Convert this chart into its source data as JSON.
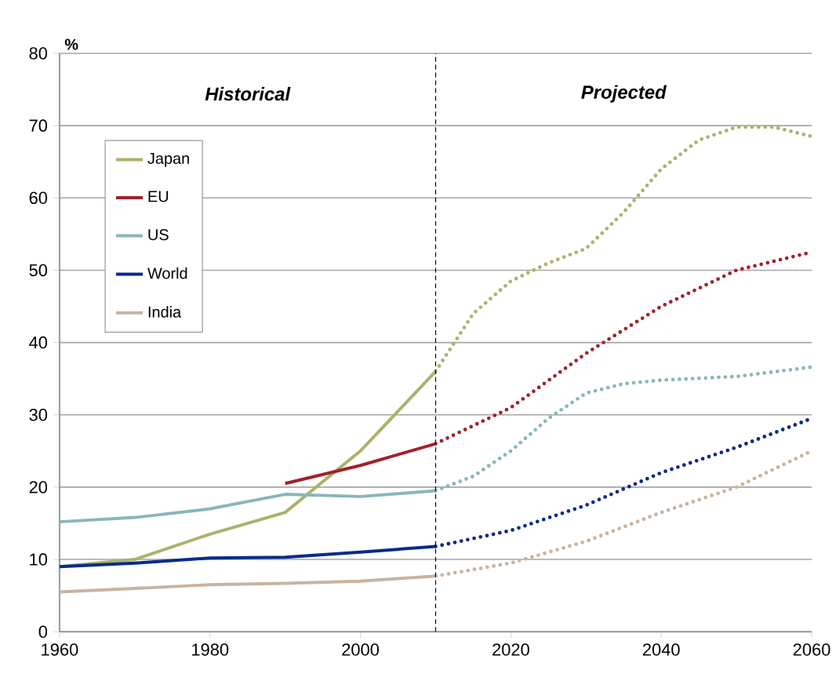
{
  "chart_data": {
    "type": "line",
    "ylabel": "%",
    "xlim": [
      1960,
      2060
    ],
    "ylim": [
      0,
      80
    ],
    "xticks": [
      1960,
      1980,
      2000,
      2020,
      2040,
      2060
    ],
    "yticks": [
      0,
      10,
      20,
      30,
      40,
      50,
      60,
      70,
      80
    ],
    "grid": "y",
    "legend": "top left",
    "marker": "none",
    "annotations": [
      "Historical",
      "Projected"
    ],
    "ref_lines": [
      {
        "axis": "x",
        "value": 2010,
        "color": "#000000",
        "line_style": "dashed"
      }
    ],
    "series": [
      {
        "name": "Japan",
        "color": "#a9b36b",
        "line_style": "solid",
        "x": [
          1960,
          1970,
          1980,
          1990,
          2000,
          2010
        ],
        "values": [
          9,
          10,
          13.5,
          16.5,
          25,
          36
        ]
      },
      {
        "name": "EU",
        "color": "#a3202e",
        "line_style": "solid",
        "x": [
          1990,
          2000,
          2010
        ],
        "values": [
          20.5,
          23,
          26
        ]
      },
      {
        "name": "US",
        "color": "#8ab6b8",
        "line_style": "solid",
        "x": [
          1960,
          1970,
          1980,
          1990,
          2000,
          2010
        ],
        "values": [
          15.2,
          15.8,
          17,
          19,
          18.7,
          19.5
        ]
      },
      {
        "name": "World",
        "color": "#0a2a8c",
        "line_style": "solid",
        "x": [
          1960,
          1970,
          1980,
          1990,
          2000,
          2010
        ],
        "values": [
          9,
          9.5,
          10.2,
          10.3,
          11,
          11.8
        ]
      },
      {
        "name": "India",
        "color": "#c9b3a0",
        "line_style": "solid",
        "x": [
          1960,
          1970,
          1980,
          1990,
          2000,
          2010
        ],
        "values": [
          5.5,
          6,
          6.5,
          6.7,
          7,
          7.7
        ]
      },
      {
        "color": "#a9b36b",
        "line_style": "dotted",
        "x": [
          2010,
          2015,
          2020,
          2025,
          2030,
          2035,
          2040,
          2045,
          2050,
          2055,
          2060
        ],
        "values": [
          36,
          44,
          48.5,
          51,
          53,
          58,
          64,
          68,
          69.8,
          69.8,
          68.5
        ]
      },
      {
        "color": "#a3202e",
        "line_style": "dotted",
        "x": [
          2010,
          2020,
          2030,
          2040,
          2050,
          2060
        ],
        "values": [
          26,
          31,
          38.5,
          45,
          50,
          52.5
        ]
      },
      {
        "color": "#8ab6b8",
        "line_style": "dotted",
        "x": [
          2010,
          2015,
          2020,
          2025,
          2030,
          2035,
          2040,
          2050,
          2060
        ],
        "values": [
          19.5,
          21.5,
          25,
          29.5,
          33,
          34.3,
          34.8,
          35.3,
          36.6
        ]
      },
      {
        "color": "#0a2a8c",
        "line_style": "dotted",
        "x": [
          2010,
          2020,
          2030,
          2040,
          2050,
          2060
        ],
        "values": [
          11.8,
          14,
          17.5,
          22,
          25.5,
          29.5
        ]
      },
      {
        "color": "#c9b3a0",
        "line_style": "dotted",
        "x": [
          2010,
          2020,
          2030,
          2040,
          2050,
          2060
        ],
        "values": [
          7.7,
          9.5,
          12.5,
          16.5,
          20,
          25
        ]
      }
    ]
  }
}
